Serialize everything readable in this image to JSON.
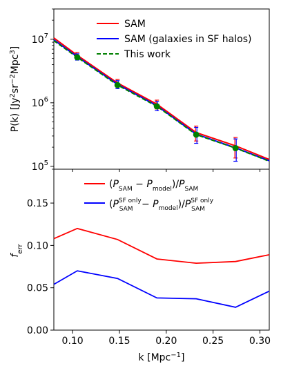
{
  "chart_data": [
    {
      "type": "line",
      "panel": "top",
      "ylabel": "P(k) [Jy²sr⁻²Mpc³]",
      "yscale": "log",
      "ylim": [
        90000,
        30000000
      ],
      "xlim": [
        0.08,
        0.31
      ],
      "y_ticks": [
        {
          "value": 100000,
          "base": "10",
          "exp": "5"
        },
        {
          "value": 1000000,
          "base": "10",
          "exp": "6"
        },
        {
          "value": 10000000,
          "base": "10",
          "exp": "7"
        }
      ],
      "legend_position": "top-right",
      "series": [
        {
          "name": "SAM",
          "color": "#ff0000",
          "style": "solid",
          "x": [
            0.08,
            0.105,
            0.148,
            0.19,
            0.232,
            0.274,
            0.31
          ],
          "y": [
            10500000,
            5600000,
            2050000,
            950000,
            340000,
            210000,
            128000
          ],
          "yerr": [
            null,
            600000,
            280000,
            150000,
            90000,
            75000,
            null
          ]
        },
        {
          "name": "SAM (galaxies in SF halos)",
          "color": "#0000ff",
          "style": "solid",
          "x": [
            0.08,
            0.105,
            0.148,
            0.19,
            0.232,
            0.274,
            0.31
          ],
          "y": [
            9800000,
            5300000,
            1950000,
            900000,
            320000,
            195000,
            122000
          ],
          "yerr": [
            null,
            600000,
            280000,
            150000,
            90000,
            75000,
            null
          ]
        },
        {
          "name": "This work",
          "color": "#008000",
          "style": "dashed",
          "x": [
            0.08,
            0.105,
            0.148,
            0.19,
            0.232,
            0.274,
            0.31
          ],
          "y": [
            9500000,
            5200000,
            1900000,
            880000,
            315000,
            193000,
            120000
          ],
          "markers": true
        }
      ]
    },
    {
      "type": "line",
      "panel": "bottom",
      "xlabel": "k [Mpc⁻¹]",
      "ylabel": "f_err",
      "xlim": [
        0.08,
        0.31
      ],
      "ylim": [
        0.0,
        0.19
      ],
      "x_ticks": [
        "0.10",
        "0.15",
        "0.20",
        "0.25",
        "0.30"
      ],
      "y_ticks": [
        "0.00",
        "0.05",
        "0.10",
        "0.15"
      ],
      "legend_position": "top-right",
      "series": [
        {
          "name": "(P_SAM − P_model)/P_SAM",
          "color": "#ff0000",
          "x": [
            0.08,
            0.105,
            0.148,
            0.19,
            0.232,
            0.274,
            0.31
          ],
          "y": [
            0.108,
            0.12,
            0.107,
            0.084,
            0.079,
            0.081,
            0.089
          ]
        },
        {
          "name": "(P_SAM^SF only − P_model)/P_SAM^SF only",
          "color": "#0000ff",
          "x": [
            0.08,
            0.105,
            0.148,
            0.19,
            0.232,
            0.274,
            0.31
          ],
          "y": [
            0.054,
            0.07,
            0.061,
            0.038,
            0.037,
            0.027,
            0.046
          ]
        }
      ]
    }
  ],
  "legend_top": {
    "items": [
      "SAM",
      "SAM (galaxies in SF halos)",
      "This work"
    ]
  },
  "legend_bottom": {
    "item1": {
      "open": "(",
      "P": "P",
      "sam": "SAM",
      "minus": " − ",
      "model": "model",
      "close": ")/"
    },
    "item2": {
      "sfonly": "SF only"
    }
  },
  "labels": {
    "ylabel_top_prefix": "P(k) [Jy",
    "ylabel_top_sup1": "2",
    "ylabel_top_mid": "sr",
    "ylabel_top_sup2": "−2",
    "ylabel_top_mid2": "Mpc",
    "ylabel_top_sup3": "3",
    "ylabel_top_suffix": "]",
    "ylabel_bottom_f": "f",
    "ylabel_bottom_sub": "err",
    "xlabel_prefix": "k [Mpc",
    "xlabel_sup": "−1",
    "xlabel_suffix": "]"
  }
}
